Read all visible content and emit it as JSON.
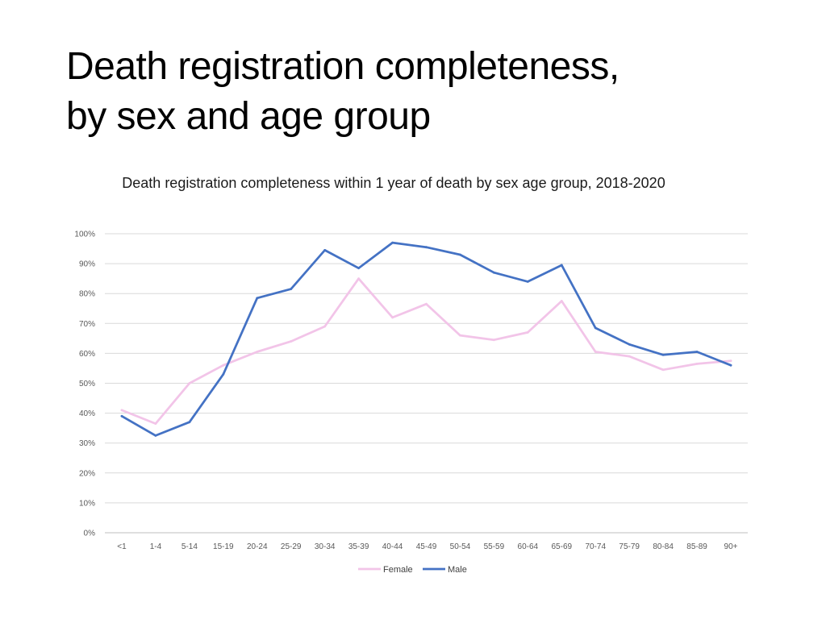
{
  "slide": {
    "title_line1": "Death registration completeness,",
    "title_line2": "by sex and age group"
  },
  "chart_data": {
    "type": "line",
    "title": "Death registration completeness within 1 year of death by sex age group, 2018-2020",
    "xlabel": "",
    "ylabel": "",
    "categories": [
      "<1",
      "1-4",
      "5-14",
      "15-19",
      "20-24",
      "25-29",
      "30-34",
      "35-39",
      "40-44",
      "45-49",
      "50-54",
      "55-59",
      "60-64",
      "65-69",
      "70-74",
      "75-79",
      "80-84",
      "85-89",
      "90+"
    ],
    "y_ticks": [
      "0%",
      "10%",
      "20%",
      "30%",
      "40%",
      "50%",
      "60%",
      "70%",
      "80%",
      "90%",
      "100%"
    ],
    "ylim": [
      0,
      100
    ],
    "grid": true,
    "legend_position": "bottom",
    "series": [
      {
        "name": "Female",
        "color": "#f2c4e8",
        "values": [
          41,
          36.5,
          50,
          56,
          60.5,
          64,
          69,
          85,
          72,
          76.5,
          66,
          64.5,
          67,
          77.5,
          60.5,
          59,
          54.5,
          56.5,
          57.5
        ]
      },
      {
        "name": "Male",
        "color": "#4472c4",
        "values": [
          39,
          32.5,
          37,
          53,
          78.5,
          81.5,
          94.5,
          88.5,
          97,
          95.5,
          93,
          87,
          84,
          89.5,
          68.5,
          63,
          59.5,
          60.5,
          56
        ]
      }
    ]
  }
}
